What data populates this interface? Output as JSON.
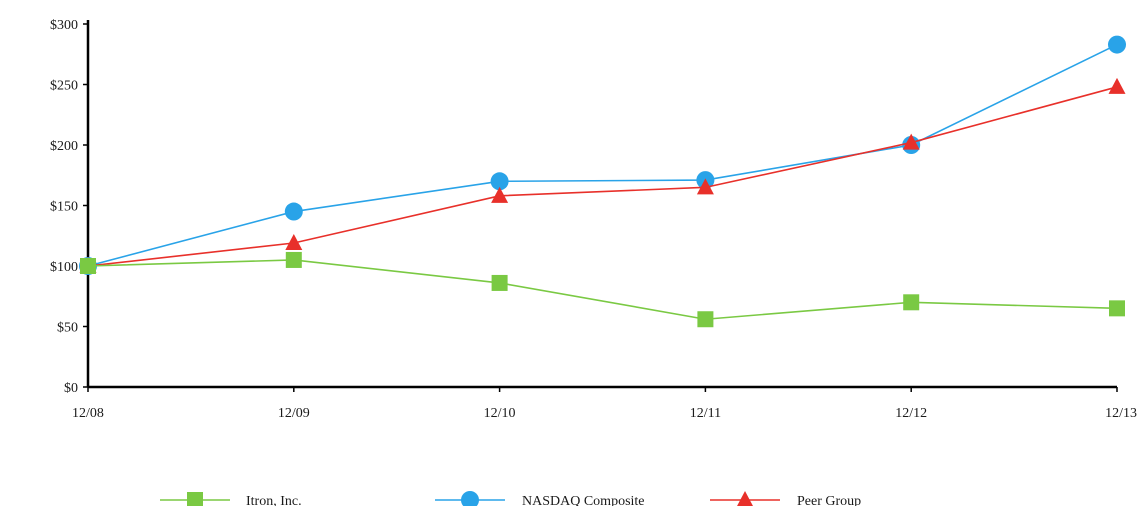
{
  "chart_data": {
    "type": "line",
    "title": "",
    "xlabel": "",
    "ylabel": "",
    "categories": [
      "12/08",
      "12/09",
      "12/10",
      "12/11",
      "12/12",
      "12/13"
    ],
    "ylim": [
      0,
      300
    ],
    "yticks": [
      "$0",
      "$50",
      "$100",
      "$150",
      "$200",
      "$250",
      "$300"
    ],
    "ytick_values": [
      0,
      50,
      100,
      150,
      200,
      250,
      300
    ],
    "grid": false,
    "legend_position": "bottom",
    "series": [
      {
        "name": "Itron, Inc.",
        "marker": "square",
        "color": "#7ac943",
        "markerColor": "#7ac943",
        "values": [
          100,
          105,
          86,
          56,
          70,
          65
        ]
      },
      {
        "name": "NASDAQ Composite",
        "marker": "circle",
        "color": "#29a3e8",
        "markerColor": "#29a3e8",
        "values": [
          100,
          145,
          170,
          171,
          200,
          283
        ]
      },
      {
        "name": "Peer Group",
        "marker": "triangle",
        "color": "#e8302a",
        "markerColor": "#e8302a",
        "values": [
          100,
          119,
          158,
          165,
          202,
          248
        ]
      }
    ]
  }
}
